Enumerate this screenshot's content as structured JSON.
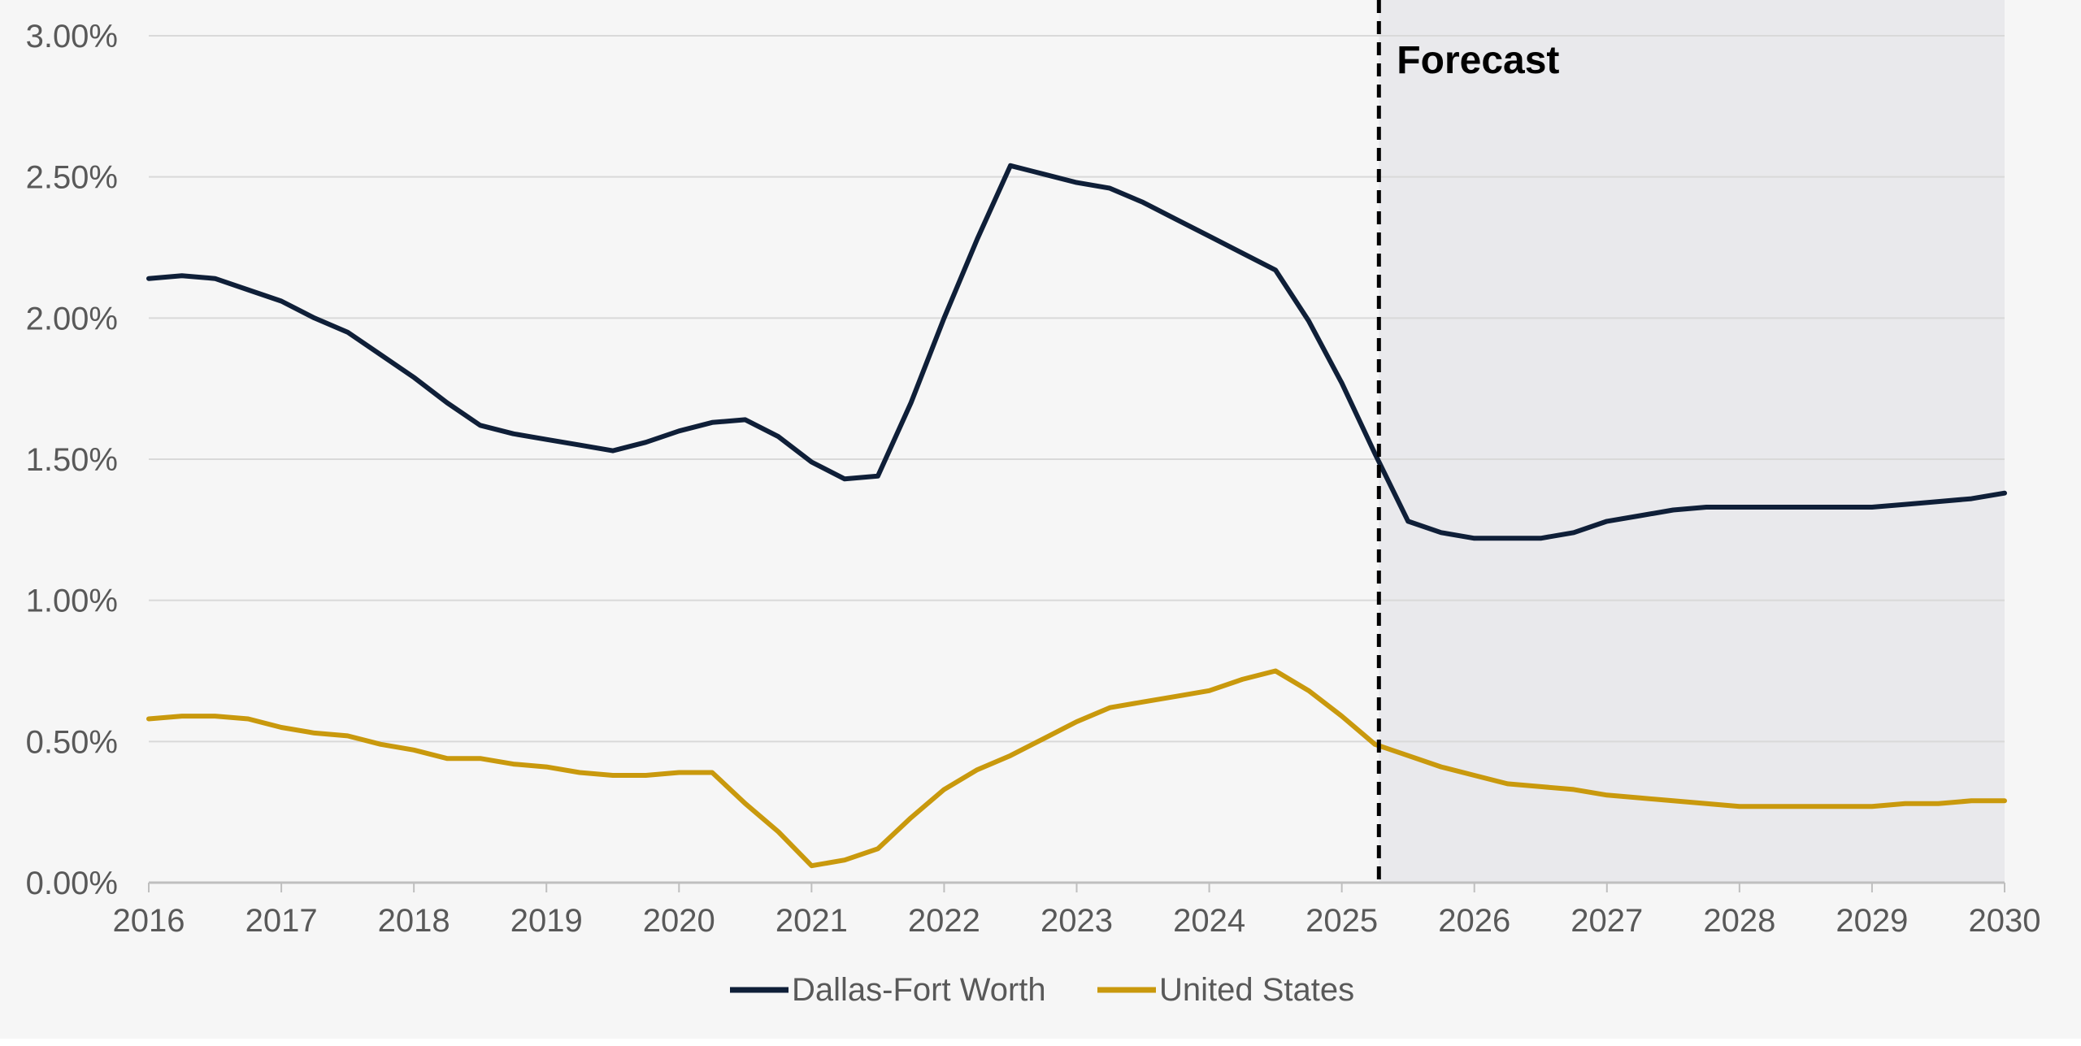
{
  "chart_data": {
    "type": "line",
    "title": "",
    "xlabel": "",
    "ylabel": "",
    "xlim": [
      2016,
      2030
    ],
    "ylim": [
      0,
      3.0
    ],
    "x_ticks": [
      "2016",
      "2017",
      "2018",
      "2019",
      "2020",
      "2021",
      "2022",
      "2023",
      "2024",
      "2025",
      "2026",
      "2027",
      "2028",
      "2029",
      "2030"
    ],
    "y_ticks": [
      "0.00%",
      "0.50%",
      "1.00%",
      "1.50%",
      "2.00%",
      "2.50%",
      "3.00%"
    ],
    "grid": "horizontal",
    "legend_position": "bottom-center",
    "forecast": {
      "label": "Forecast",
      "start_x": 2025.28,
      "end_x": 2030
    },
    "series": [
      {
        "name": "Dallas-Fort Worth",
        "color": "#0f1f38",
        "points": [
          [
            2016.0,
            2.14
          ],
          [
            2016.25,
            2.15
          ],
          [
            2016.5,
            2.14
          ],
          [
            2016.75,
            2.1
          ],
          [
            2017.0,
            2.06
          ],
          [
            2017.25,
            2.0
          ],
          [
            2017.5,
            1.95
          ],
          [
            2017.75,
            1.87
          ],
          [
            2018.0,
            1.79
          ],
          [
            2018.25,
            1.7
          ],
          [
            2018.5,
            1.62
          ],
          [
            2018.75,
            1.59
          ],
          [
            2019.0,
            1.57
          ],
          [
            2019.25,
            1.55
          ],
          [
            2019.5,
            1.53
          ],
          [
            2019.75,
            1.56
          ],
          [
            2020.0,
            1.6
          ],
          [
            2020.25,
            1.63
          ],
          [
            2020.5,
            1.64
          ],
          [
            2020.75,
            1.58
          ],
          [
            2021.0,
            1.49
          ],
          [
            2021.25,
            1.43
          ],
          [
            2021.5,
            1.44
          ],
          [
            2021.75,
            1.7
          ],
          [
            2022.0,
            2.0
          ],
          [
            2022.25,
            2.28
          ],
          [
            2022.5,
            2.54
          ],
          [
            2022.75,
            2.51
          ],
          [
            2023.0,
            2.48
          ],
          [
            2023.25,
            2.46
          ],
          [
            2023.5,
            2.41
          ],
          [
            2023.75,
            2.35
          ],
          [
            2024.0,
            2.29
          ],
          [
            2024.25,
            2.23
          ],
          [
            2024.5,
            2.17
          ],
          [
            2024.75,
            1.99
          ],
          [
            2025.0,
            1.77
          ],
          [
            2025.25,
            1.52
          ],
          [
            2025.5,
            1.28
          ],
          [
            2025.75,
            1.24
          ],
          [
            2026.0,
            1.22
          ],
          [
            2026.25,
            1.22
          ],
          [
            2026.5,
            1.22
          ],
          [
            2026.75,
            1.24
          ],
          [
            2027.0,
            1.28
          ],
          [
            2027.25,
            1.3
          ],
          [
            2027.5,
            1.32
          ],
          [
            2027.75,
            1.33
          ],
          [
            2028.0,
            1.33
          ],
          [
            2028.25,
            1.33
          ],
          [
            2028.5,
            1.33
          ],
          [
            2028.75,
            1.33
          ],
          [
            2029.0,
            1.33
          ],
          [
            2029.25,
            1.34
          ],
          [
            2029.5,
            1.35
          ],
          [
            2029.75,
            1.36
          ],
          [
            2030.0,
            1.38
          ]
        ]
      },
      {
        "name": "United States",
        "color": "#c9990d",
        "points": [
          [
            2016.0,
            0.58
          ],
          [
            2016.25,
            0.59
          ],
          [
            2016.5,
            0.59
          ],
          [
            2016.75,
            0.58
          ],
          [
            2017.0,
            0.55
          ],
          [
            2017.25,
            0.53
          ],
          [
            2017.5,
            0.52
          ],
          [
            2017.75,
            0.49
          ],
          [
            2018.0,
            0.47
          ],
          [
            2018.25,
            0.44
          ],
          [
            2018.5,
            0.44
          ],
          [
            2018.75,
            0.42
          ],
          [
            2019.0,
            0.41
          ],
          [
            2019.25,
            0.39
          ],
          [
            2019.5,
            0.38
          ],
          [
            2019.75,
            0.38
          ],
          [
            2020.0,
            0.39
          ],
          [
            2020.25,
            0.39
          ],
          [
            2020.5,
            0.28
          ],
          [
            2020.75,
            0.18
          ],
          [
            2021.0,
            0.06
          ],
          [
            2021.25,
            0.08
          ],
          [
            2021.5,
            0.12
          ],
          [
            2021.75,
            0.23
          ],
          [
            2022.0,
            0.33
          ],
          [
            2022.25,
            0.4
          ],
          [
            2022.5,
            0.45
          ],
          [
            2022.75,
            0.51
          ],
          [
            2023.0,
            0.57
          ],
          [
            2023.25,
            0.62
          ],
          [
            2023.5,
            0.64
          ],
          [
            2023.75,
            0.66
          ],
          [
            2024.0,
            0.68
          ],
          [
            2024.25,
            0.72
          ],
          [
            2024.5,
            0.75
          ],
          [
            2024.75,
            0.68
          ],
          [
            2025.0,
            0.59
          ],
          [
            2025.25,
            0.49
          ],
          [
            2025.5,
            0.45
          ],
          [
            2025.75,
            0.41
          ],
          [
            2026.0,
            0.38
          ],
          [
            2026.25,
            0.35
          ],
          [
            2026.5,
            0.34
          ],
          [
            2026.75,
            0.33
          ],
          [
            2027.0,
            0.31
          ],
          [
            2027.25,
            0.3
          ],
          [
            2027.5,
            0.29
          ],
          [
            2027.75,
            0.28
          ],
          [
            2028.0,
            0.27
          ],
          [
            2028.25,
            0.27
          ],
          [
            2028.5,
            0.27
          ],
          [
            2028.75,
            0.27
          ],
          [
            2029.0,
            0.27
          ],
          [
            2029.25,
            0.28
          ],
          [
            2029.5,
            0.28
          ],
          [
            2029.75,
            0.29
          ],
          [
            2030.0,
            0.29
          ]
        ]
      }
    ]
  }
}
